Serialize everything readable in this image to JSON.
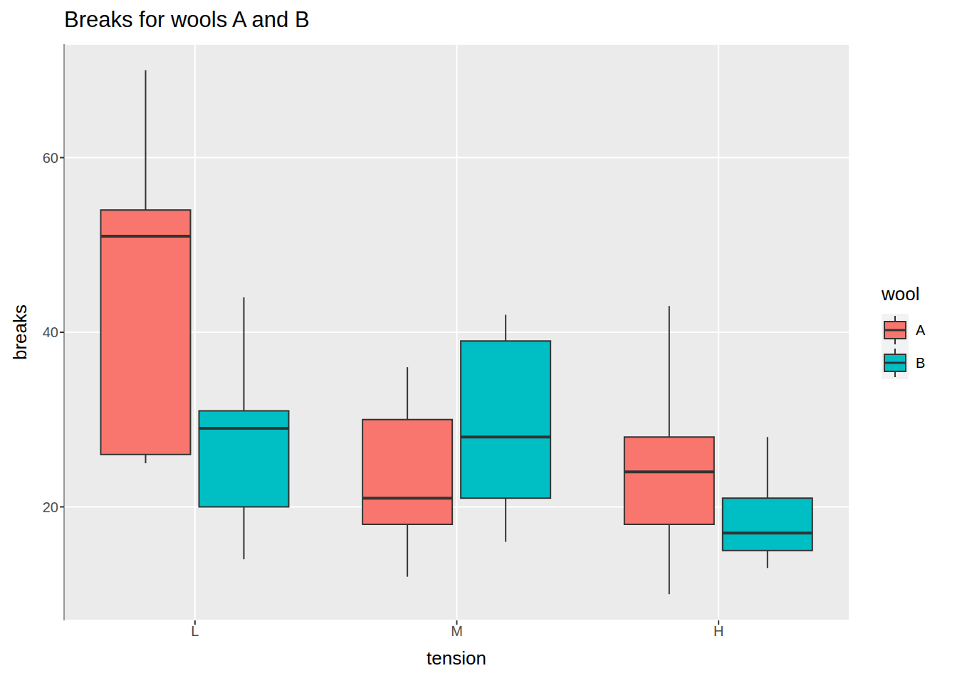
{
  "chart_data": {
    "type": "boxplot",
    "title": "Breaks for wools A and B",
    "x_label": "tension",
    "y_label": "breaks",
    "categories": [
      "L",
      "M",
      "H"
    ],
    "series": [
      {
        "name": "A",
        "color": "#F8766D",
        "min": [
          25,
          12,
          10
        ],
        "q1": [
          26,
          18,
          18
        ],
        "median": [
          51,
          21,
          24
        ],
        "q3": [
          54,
          30,
          28
        ],
        "max": [
          70,
          36,
          43
        ]
      },
      {
        "name": "B",
        "color": "#00BFC4",
        "min": [
          14,
          16,
          13
        ],
        "q1": [
          20,
          21,
          15
        ],
        "median": [
          29,
          28,
          17
        ],
        "q3": [
          31,
          39,
          21
        ],
        "max": [
          44,
          42,
          28
        ]
      }
    ],
    "ylim": [
      7,
      73
    ],
    "yticks": [
      20,
      40,
      60
    ],
    "grid": true,
    "legend": "right",
    "legend_title": "wool"
  }
}
